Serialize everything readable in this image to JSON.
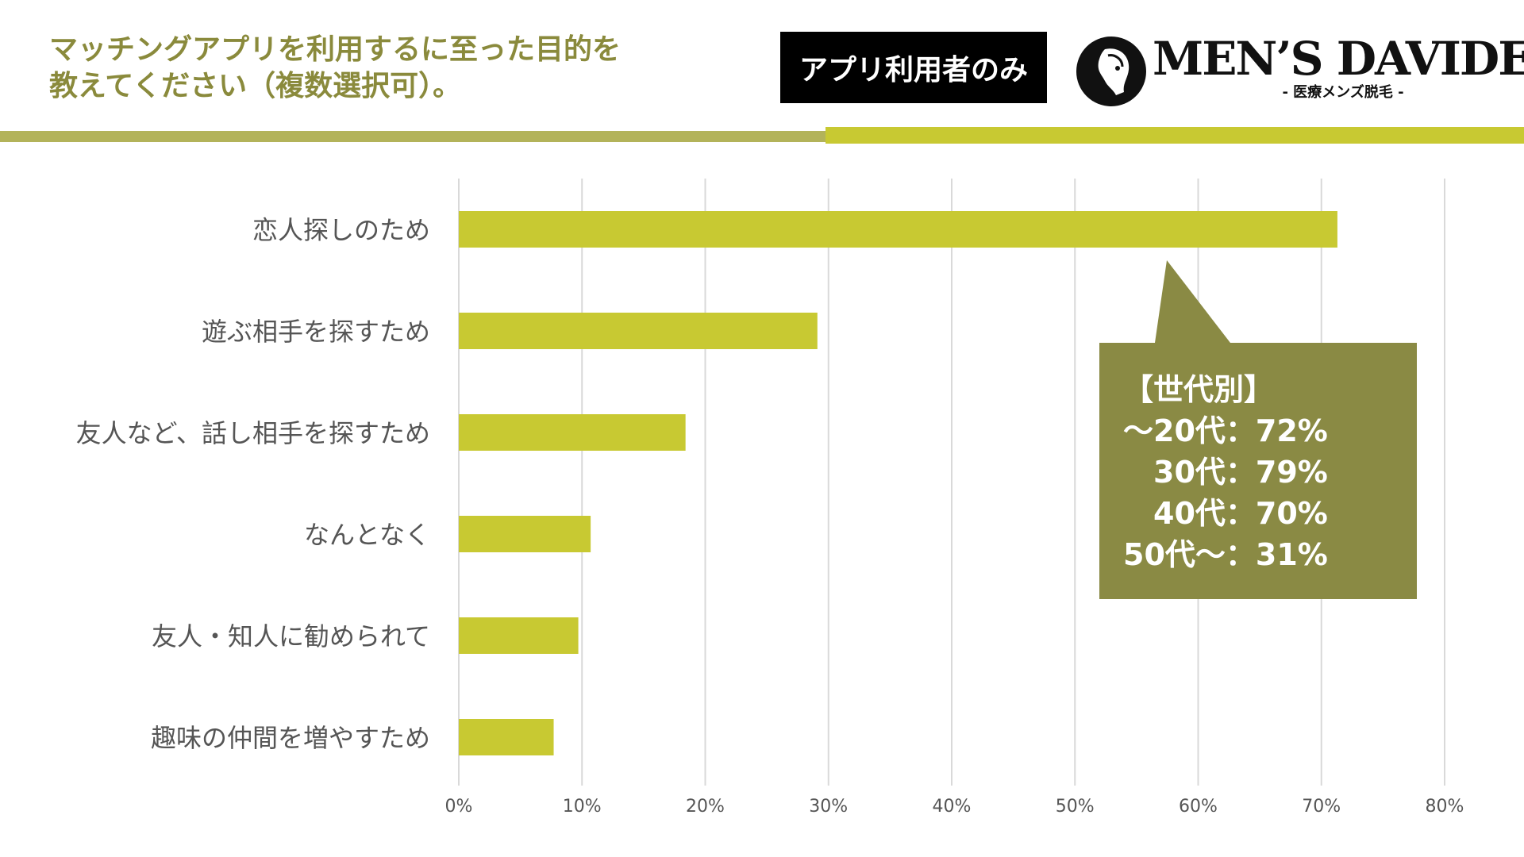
{
  "title_lines": [
    "マッチングアプリを利用するに至った目的を",
    "教えてください（複数選択可）。"
  ],
  "badge": "アプリ利用者のみ",
  "logo": {
    "name": "MEN’S DAVIDE",
    "sub": "- 医療メンズ脱毛 -"
  },
  "colors": {
    "bar": "#c8c932",
    "callout": "#8a8a44",
    "title": "#8a8a3c",
    "grid": "#d9d9d9"
  },
  "chart_data": {
    "type": "bar",
    "orientation": "horizontal",
    "categories": [
      "恋人探しのため",
      "遊ぶ相手を探すため",
      "友人など、話し相手を探すため",
      "なんとなく",
      "友人・知人に勧められて",
      "趣味の仲間を増やすため"
    ],
    "values": [
      71.3,
      29.1,
      18.4,
      10.7,
      9.7,
      7.7
    ],
    "xlim": [
      0,
      80
    ],
    "xticks": [
      "0%",
      "10%",
      "20%",
      "30%",
      "40%",
      "50%",
      "60%",
      "70%",
      "80%"
    ],
    "grid": true,
    "annotation": {
      "heading": "【世代別】",
      "lines": [
        "～20代：72%",
        "　30代：79%",
        "　40代：70%",
        "50代～：31%"
      ]
    }
  }
}
